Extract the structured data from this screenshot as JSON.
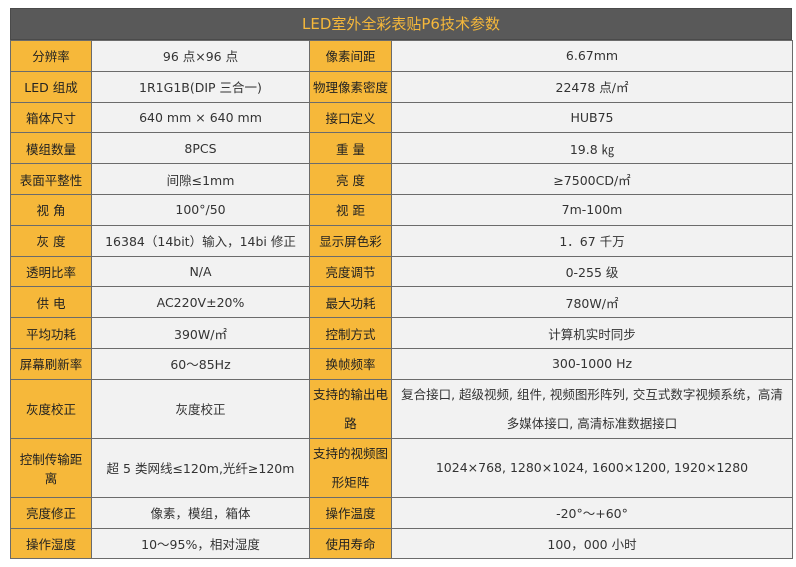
{
  "title": "LED室外全彩表贴P6技术参数",
  "rows": [
    {
      "k1": "分辨率",
      "v1": "96 点×96 点",
      "k2": "像素间距",
      "v2": "6.67mm"
    },
    {
      "k1": "LED 组成",
      "v1": "1R1G1B(DIP 三合一)",
      "k2": "物理像素密度",
      "v2": "22478 点/㎡"
    },
    {
      "k1": "箱体尺寸",
      "v1": "640 mm × 640 mm",
      "k2": "接口定义",
      "v2": "HUB75"
    },
    {
      "k1": "模组数量",
      "v1": "8PCS",
      "k2": "重 量",
      "v2": "19.8 ㎏"
    },
    {
      "k1": "表面平整性",
      "v1": "间隙≤1mm",
      "k2": "亮 度",
      "v2": "≥7500CD/㎡"
    },
    {
      "k1": "视 角",
      "v1": "100°/50",
      "k2": "视 距",
      "v2": "7m-100m"
    },
    {
      "k1": "灰 度",
      "v1": "16384（14bit）输入，14bi 修正",
      "k2": "显示屏色彩",
      "v2": "1．67 千万"
    },
    {
      "k1": "透明比率",
      "v1": "N/A",
      "k2": "亮度调节",
      "v2": "0-255 级"
    },
    {
      "k1": "供 电",
      "v1": "AC220V±20%",
      "k2": "最大功耗",
      "v2": "780W/㎡"
    },
    {
      "k1": "平均功耗",
      "v1": "390W/㎡",
      "k2": "控制方式",
      "v2": "计算机实时同步"
    },
    {
      "k1": "屏幕刷新率",
      "v1": "60～85Hz",
      "k2": "换帧频率",
      "v2": "300-1000 Hz"
    },
    {
      "k1": "灰度校正",
      "v1": "灰度校正",
      "k2": "支持的输出电路",
      "v2": "复合接口, 超级视频, 组件, 视频图形阵列, 交互式数字视频系统，高清多媒体接口, 高清标准数据接口"
    },
    {
      "k1": "控制传输距离",
      "v1": "超 5 类网线≤120m,光纤≥120m",
      "k2": "支持的视频图形矩阵",
      "v2": "1024×768, 1280×1024, 1600×1200, 1920×1280"
    },
    {
      "k1": "亮度修正",
      "v1": "像素，模组，箱体",
      "k2": "操作温度",
      "v2": "-20°～+60°"
    },
    {
      "k1": "操作湿度",
      "v1": "10～95%，相对湿度",
      "k2": "使用寿命",
      "v2": "100，000 小时"
    }
  ],
  "colors": {
    "header_bg": "#595959",
    "header_text": "#f6b83a",
    "key_bg": "#f6b83a",
    "value_bg": "#f2f2f2",
    "border": "#6b6b6b"
  }
}
